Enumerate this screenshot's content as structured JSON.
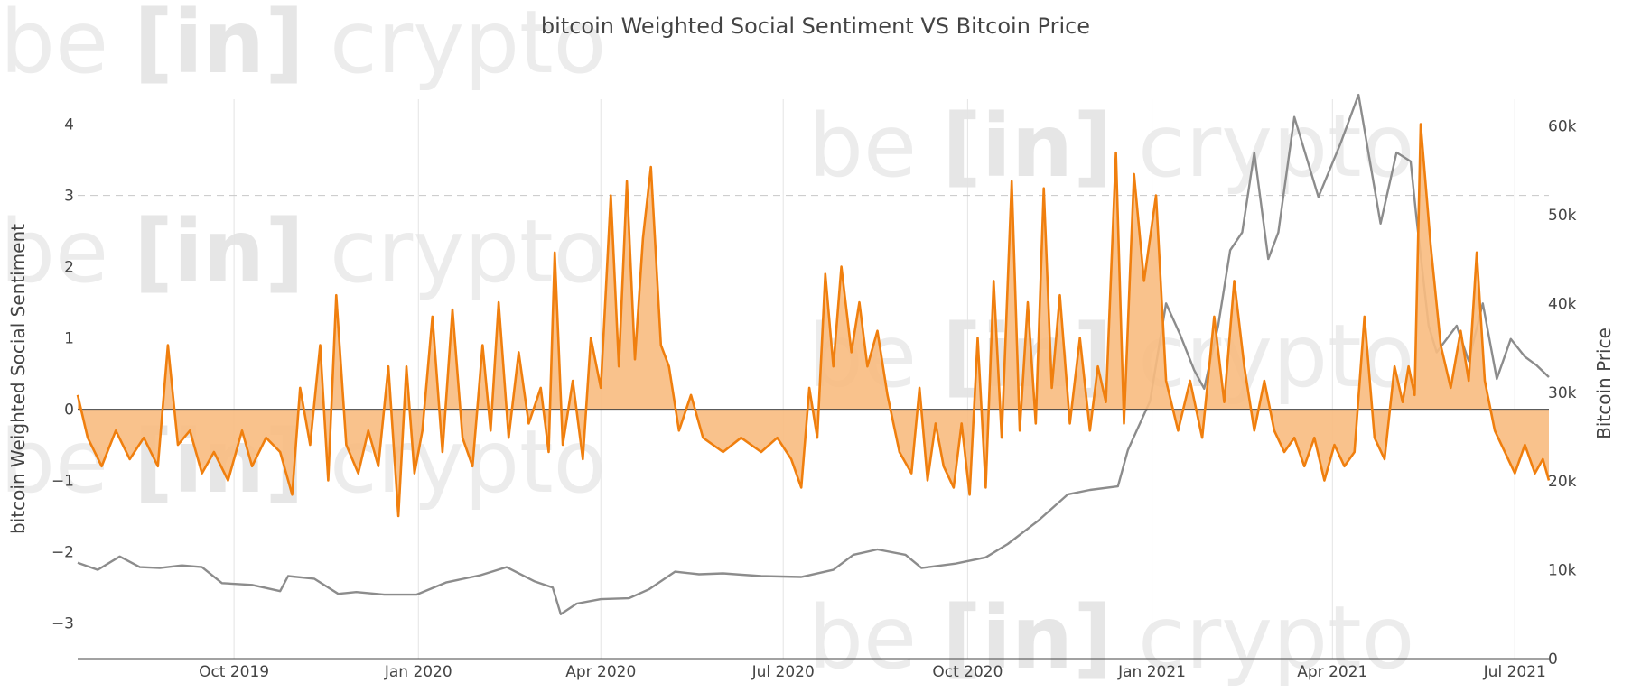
{
  "watermark": {
    "part1": "be",
    "part2": "[in]",
    "part3": "crypto"
  },
  "chart_data": {
    "type": "line",
    "title": "bitcoin Weighted Social Sentiment VS Bitcoin Price",
    "y_left_label": "bitcoin Weighted Social Sentiment",
    "y_right_label": "Bitcoin Price",
    "y_left_range": [
      -3.5,
      4.35
    ],
    "y_right_range": [
      0,
      63000
    ],
    "y_left_ticks": [
      {
        "v": 4,
        "label": "4"
      },
      {
        "v": 3,
        "label": "3"
      },
      {
        "v": 2,
        "label": "2"
      },
      {
        "v": 1,
        "label": "1"
      },
      {
        "v": 0,
        "label": "0"
      },
      {
        "v": -1,
        "label": "−1"
      },
      {
        "v": -2,
        "label": "−2"
      },
      {
        "v": -3,
        "label": "−3"
      }
    ],
    "y_right_ticks": [
      {
        "v": 60000,
        "label": "60k"
      },
      {
        "v": 50000,
        "label": "50k"
      },
      {
        "v": 40000,
        "label": "40k"
      },
      {
        "v": 30000,
        "label": "30k"
      },
      {
        "v": 20000,
        "label": "20k"
      },
      {
        "v": 10000,
        "label": "10k"
      },
      {
        "v": 0,
        "label": "0"
      }
    ],
    "dashed_levels": [
      3,
      -3
    ],
    "x_range": [
      "2019-07-15",
      "2021-07-18"
    ],
    "x_ticks": [
      {
        "date": "2019-10-01",
        "label": "Oct 2019"
      },
      {
        "date": "2020-01-01",
        "label": "Jan 2020"
      },
      {
        "date": "2020-04-01",
        "label": "Apr 2020"
      },
      {
        "date": "2020-07-01",
        "label": "Jul 2020"
      },
      {
        "date": "2020-10-01",
        "label": "Oct 2020"
      },
      {
        "date": "2021-01-01",
        "label": "Jan 2021"
      },
      {
        "date": "2021-04-01",
        "label": "Apr 2021"
      },
      {
        "date": "2021-07-01",
        "label": "Jul 2021"
      }
    ],
    "colors": {
      "sentiment": "#f07f0e",
      "fill": "#f8bb80",
      "price": "#8c8c8c",
      "grid": "#e4e4e4",
      "zero": "#444444"
    },
    "series": [
      {
        "name": "bitcoin Weighted Social Sentiment",
        "axis": "left",
        "points": [
          [
            "2019-07-15",
            0.2
          ],
          [
            "2019-07-20",
            -0.4
          ],
          [
            "2019-07-27",
            -0.8
          ],
          [
            "2019-08-03",
            -0.3
          ],
          [
            "2019-08-10",
            -0.7
          ],
          [
            "2019-08-17",
            -0.4
          ],
          [
            "2019-08-24",
            -0.8
          ],
          [
            "2019-08-29",
            0.9
          ],
          [
            "2019-09-03",
            -0.5
          ],
          [
            "2019-09-09",
            -0.3
          ],
          [
            "2019-09-15",
            -0.9
          ],
          [
            "2019-09-21",
            -0.6
          ],
          [
            "2019-09-28",
            -1.0
          ],
          [
            "2019-10-05",
            -0.3
          ],
          [
            "2019-10-10",
            -0.8
          ],
          [
            "2019-10-17",
            -0.4
          ],
          [
            "2019-10-24",
            -0.6
          ],
          [
            "2019-10-30",
            -1.2
          ],
          [
            "2019-11-03",
            0.3
          ],
          [
            "2019-11-08",
            -0.5
          ],
          [
            "2019-11-13",
            0.9
          ],
          [
            "2019-11-17",
            -1.0
          ],
          [
            "2019-11-21",
            1.6
          ],
          [
            "2019-11-26",
            -0.5
          ],
          [
            "2019-12-02",
            -0.9
          ],
          [
            "2019-12-07",
            -0.3
          ],
          [
            "2019-12-12",
            -0.8
          ],
          [
            "2019-12-17",
            0.6
          ],
          [
            "2019-12-22",
            -1.5
          ],
          [
            "2019-12-26",
            0.6
          ],
          [
            "2019-12-30",
            -0.9
          ],
          [
            "2020-01-03",
            -0.3
          ],
          [
            "2020-01-08",
            1.3
          ],
          [
            "2020-01-13",
            -0.6
          ],
          [
            "2020-01-18",
            1.4
          ],
          [
            "2020-01-23",
            -0.4
          ],
          [
            "2020-01-28",
            -0.8
          ],
          [
            "2020-02-02",
            0.9
          ],
          [
            "2020-02-06",
            -0.3
          ],
          [
            "2020-02-10",
            1.5
          ],
          [
            "2020-02-15",
            -0.4
          ],
          [
            "2020-02-20",
            0.8
          ],
          [
            "2020-02-25",
            -0.2
          ],
          [
            "2020-03-02",
            0.3
          ],
          [
            "2020-03-06",
            -0.6
          ],
          [
            "2020-03-09",
            2.2
          ],
          [
            "2020-03-13",
            -0.5
          ],
          [
            "2020-03-18",
            0.4
          ],
          [
            "2020-03-23",
            -0.7
          ],
          [
            "2020-03-27",
            1.0
          ],
          [
            "2020-04-01",
            0.3
          ],
          [
            "2020-04-06",
            3.0
          ],
          [
            "2020-04-10",
            0.6
          ],
          [
            "2020-04-14",
            3.2
          ],
          [
            "2020-04-18",
            0.7
          ],
          [
            "2020-04-22",
            2.4
          ],
          [
            "2020-04-26",
            3.4
          ],
          [
            "2020-05-01",
            0.9
          ],
          [
            "2020-05-05",
            0.6
          ],
          [
            "2020-05-10",
            -0.3
          ],
          [
            "2020-05-16",
            0.2
          ],
          [
            "2020-05-22",
            -0.4
          ],
          [
            "2020-06-01",
            -0.6
          ],
          [
            "2020-06-10",
            -0.4
          ],
          [
            "2020-06-20",
            -0.6
          ],
          [
            "2020-06-28",
            -0.4
          ],
          [
            "2020-07-05",
            -0.7
          ],
          [
            "2020-07-10",
            -1.1
          ],
          [
            "2020-07-14",
            0.3
          ],
          [
            "2020-07-18",
            -0.4
          ],
          [
            "2020-07-22",
            1.9
          ],
          [
            "2020-07-26",
            0.6
          ],
          [
            "2020-07-30",
            2.0
          ],
          [
            "2020-08-04",
            0.8
          ],
          [
            "2020-08-08",
            1.5
          ],
          [
            "2020-08-12",
            0.6
          ],
          [
            "2020-08-17",
            1.1
          ],
          [
            "2020-08-22",
            0.2
          ],
          [
            "2020-08-28",
            -0.6
          ],
          [
            "2020-09-03",
            -0.9
          ],
          [
            "2020-09-07",
            0.3
          ],
          [
            "2020-09-11",
            -1.0
          ],
          [
            "2020-09-15",
            -0.2
          ],
          [
            "2020-09-19",
            -0.8
          ],
          [
            "2020-09-24",
            -1.1
          ],
          [
            "2020-09-28",
            -0.2
          ],
          [
            "2020-10-02",
            -1.2
          ],
          [
            "2020-10-06",
            1.0
          ],
          [
            "2020-10-10",
            -1.1
          ],
          [
            "2020-10-14",
            1.8
          ],
          [
            "2020-10-18",
            -0.4
          ],
          [
            "2020-10-23",
            3.2
          ],
          [
            "2020-10-27",
            -0.3
          ],
          [
            "2020-10-31",
            1.5
          ],
          [
            "2020-11-04",
            -0.2
          ],
          [
            "2020-11-08",
            3.1
          ],
          [
            "2020-11-12",
            0.3
          ],
          [
            "2020-11-16",
            1.6
          ],
          [
            "2020-11-21",
            -0.2
          ],
          [
            "2020-11-26",
            1.0
          ],
          [
            "2020-12-01",
            -0.3
          ],
          [
            "2020-12-05",
            0.6
          ],
          [
            "2020-12-09",
            0.1
          ],
          [
            "2020-12-14",
            3.6
          ],
          [
            "2020-12-18",
            -0.2
          ],
          [
            "2020-12-23",
            3.3
          ],
          [
            "2020-12-28",
            1.8
          ],
          [
            "2021-01-03",
            3.0
          ],
          [
            "2021-01-08",
            0.4
          ],
          [
            "2021-01-14",
            -0.3
          ],
          [
            "2021-01-20",
            0.4
          ],
          [
            "2021-01-26",
            -0.4
          ],
          [
            "2021-02-01",
            1.3
          ],
          [
            "2021-02-06",
            0.1
          ],
          [
            "2021-02-11",
            1.8
          ],
          [
            "2021-02-16",
            0.6
          ],
          [
            "2021-02-21",
            -0.3
          ],
          [
            "2021-02-26",
            0.4
          ],
          [
            "2021-03-03",
            -0.3
          ],
          [
            "2021-03-08",
            -0.6
          ],
          [
            "2021-03-13",
            -0.4
          ],
          [
            "2021-03-18",
            -0.8
          ],
          [
            "2021-03-23",
            -0.4
          ],
          [
            "2021-03-28",
            -1.0
          ],
          [
            "2021-04-02",
            -0.5
          ],
          [
            "2021-04-07",
            -0.8
          ],
          [
            "2021-04-12",
            -0.6
          ],
          [
            "2021-04-17",
            1.3
          ],
          [
            "2021-04-22",
            -0.4
          ],
          [
            "2021-04-27",
            -0.7
          ],
          [
            "2021-05-02",
            0.6
          ],
          [
            "2021-05-06",
            0.1
          ],
          [
            "2021-05-09",
            0.6
          ],
          [
            "2021-05-12",
            0.2
          ],
          [
            "2021-05-15",
            4.0
          ],
          [
            "2021-05-20",
            2.3
          ],
          [
            "2021-05-25",
            0.9
          ],
          [
            "2021-05-30",
            0.3
          ],
          [
            "2021-06-04",
            1.1
          ],
          [
            "2021-06-08",
            0.4
          ],
          [
            "2021-06-12",
            2.2
          ],
          [
            "2021-06-16",
            0.4
          ],
          [
            "2021-06-21",
            -0.3
          ],
          [
            "2021-06-26",
            -0.6
          ],
          [
            "2021-07-01",
            -0.9
          ],
          [
            "2021-07-06",
            -0.5
          ],
          [
            "2021-07-11",
            -0.9
          ],
          [
            "2021-07-15",
            -0.7
          ],
          [
            "2021-07-18",
            -1.0
          ]
        ]
      },
      {
        "name": "Bitcoin Price",
        "axis": "right",
        "points": [
          [
            "2019-07-15",
            10800
          ],
          [
            "2019-07-25",
            10000
          ],
          [
            "2019-08-05",
            11500
          ],
          [
            "2019-08-15",
            10300
          ],
          [
            "2019-08-25",
            10200
          ],
          [
            "2019-09-05",
            10500
          ],
          [
            "2019-09-15",
            10300
          ],
          [
            "2019-09-25",
            8500
          ],
          [
            "2019-10-10",
            8300
          ],
          [
            "2019-10-24",
            7600
          ],
          [
            "2019-10-28",
            9300
          ],
          [
            "2019-11-10",
            9000
          ],
          [
            "2019-11-22",
            7300
          ],
          [
            "2019-12-01",
            7500
          ],
          [
            "2019-12-15",
            7200
          ],
          [
            "2019-12-31",
            7200
          ],
          [
            "2020-01-15",
            8600
          ],
          [
            "2020-02-01",
            9400
          ],
          [
            "2020-02-14",
            10300
          ],
          [
            "2020-02-28",
            8700
          ],
          [
            "2020-03-08",
            8000
          ],
          [
            "2020-03-12",
            5000
          ],
          [
            "2020-03-20",
            6200
          ],
          [
            "2020-04-01",
            6700
          ],
          [
            "2020-04-15",
            6800
          ],
          [
            "2020-04-25",
            7800
          ],
          [
            "2020-05-08",
            9800
          ],
          [
            "2020-05-20",
            9500
          ],
          [
            "2020-06-01",
            9600
          ],
          [
            "2020-06-20",
            9300
          ],
          [
            "2020-07-10",
            9200
          ],
          [
            "2020-07-26",
            10000
          ],
          [
            "2020-08-05",
            11700
          ],
          [
            "2020-08-17",
            12300
          ],
          [
            "2020-08-31",
            11700
          ],
          [
            "2020-09-08",
            10200
          ],
          [
            "2020-09-25",
            10700
          ],
          [
            "2020-10-10",
            11400
          ],
          [
            "2020-10-21",
            12900
          ],
          [
            "2020-11-05",
            15500
          ],
          [
            "2020-11-20",
            18500
          ],
          [
            "2020-12-01",
            19000
          ],
          [
            "2020-12-15",
            19400
          ],
          [
            "2020-12-20",
            23500
          ],
          [
            "2020-12-31",
            29000
          ],
          [
            "2021-01-08",
            40000
          ],
          [
            "2021-01-15",
            36500
          ],
          [
            "2021-01-22",
            32500
          ],
          [
            "2021-01-27",
            30400
          ],
          [
            "2021-02-03",
            37500
          ],
          [
            "2021-02-09",
            46000
          ],
          [
            "2021-02-15",
            48000
          ],
          [
            "2021-02-21",
            57000
          ],
          [
            "2021-02-28",
            45000
          ],
          [
            "2021-03-05",
            48000
          ],
          [
            "2021-03-13",
            61000
          ],
          [
            "2021-03-25",
            52000
          ],
          [
            "2021-04-05",
            58000
          ],
          [
            "2021-04-14",
            63500
          ],
          [
            "2021-04-25",
            49000
          ],
          [
            "2021-05-03",
            57000
          ],
          [
            "2021-05-10",
            56000
          ],
          [
            "2021-05-13",
            49500
          ],
          [
            "2021-05-19",
            37500
          ],
          [
            "2021-05-23",
            34500
          ],
          [
            "2021-06-02",
            37500
          ],
          [
            "2021-06-08",
            33500
          ],
          [
            "2021-06-15",
            40000
          ],
          [
            "2021-06-22",
            31500
          ],
          [
            "2021-06-29",
            36000
          ],
          [
            "2021-07-06",
            34000
          ],
          [
            "2021-07-12",
            33000
          ],
          [
            "2021-07-18",
            31700
          ]
        ]
      }
    ]
  }
}
